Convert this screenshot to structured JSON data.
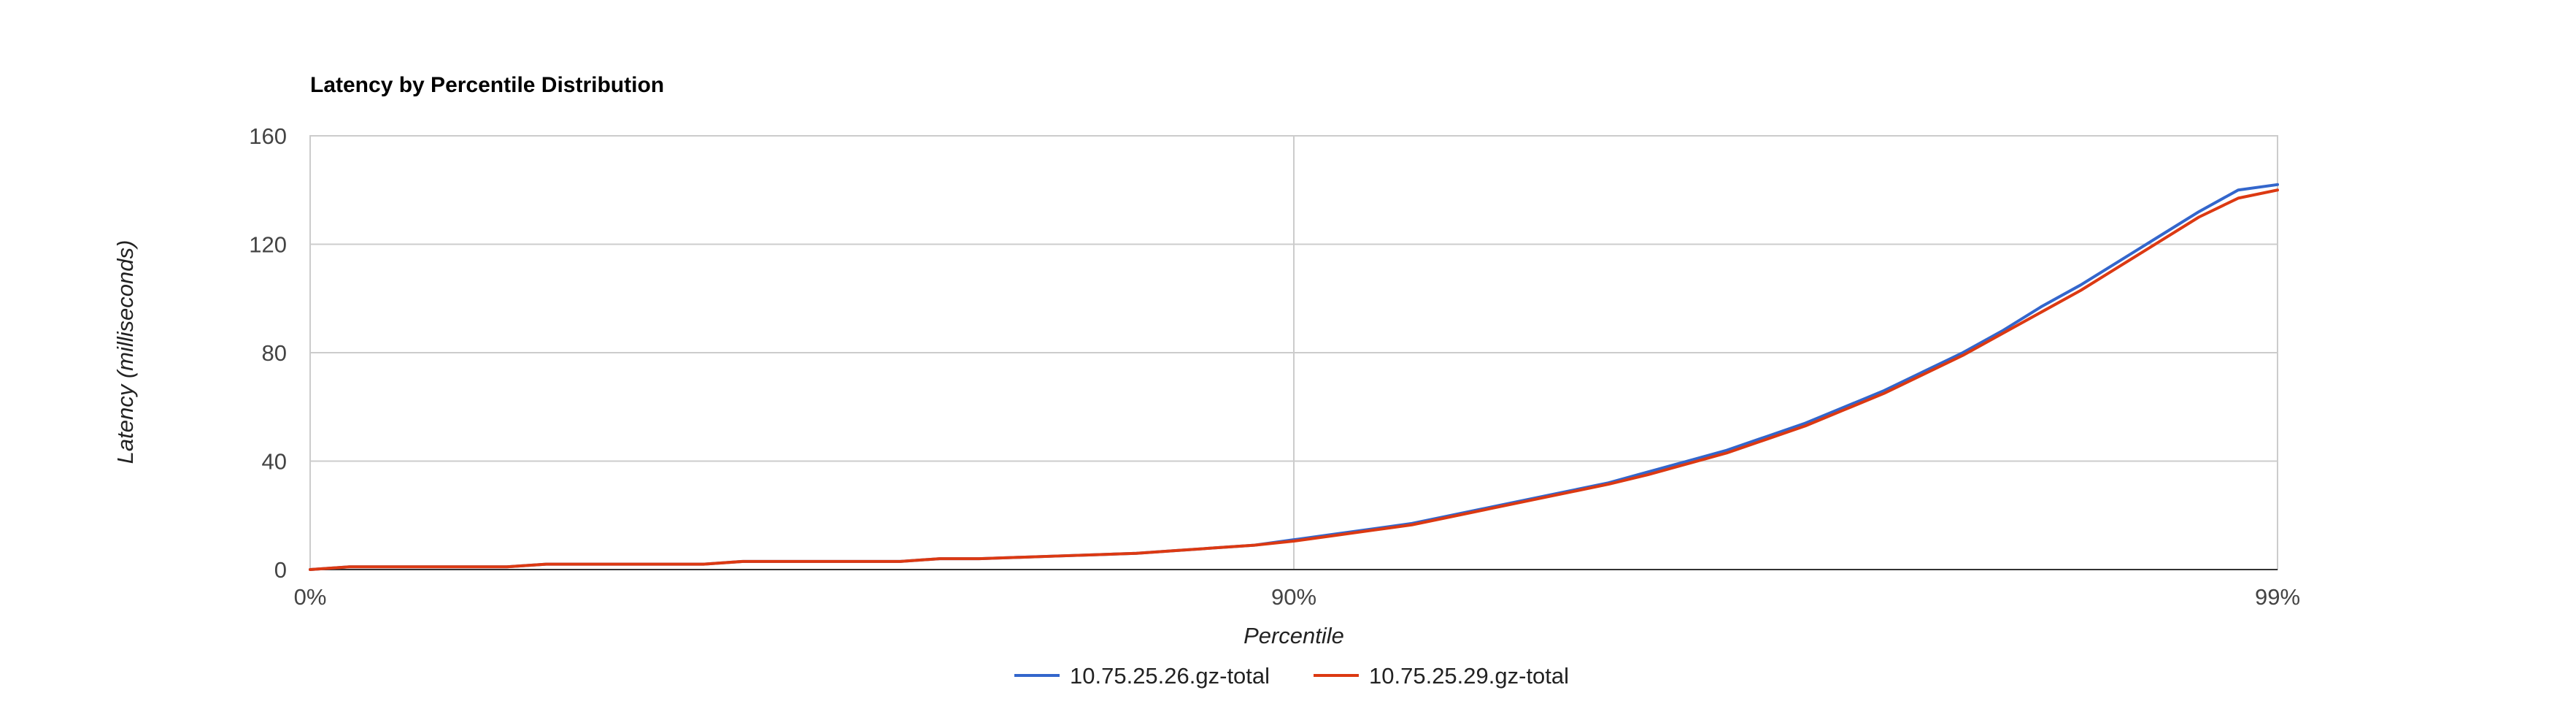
{
  "chart_data": {
    "type": "line",
    "title": "Latency by Percentile Distribution",
    "xlabel": "Percentile",
    "ylabel": "Latency (milliseconds)",
    "x_tick_labels": [
      "0%",
      "90%",
      "99%"
    ],
    "y_tick_labels": [
      "0",
      "40",
      "80",
      "120",
      "160"
    ],
    "ylim": [
      0,
      160
    ],
    "y_ticks": [
      0,
      40,
      80,
      120,
      160
    ],
    "x_note": "x values are chart percentile positions; the axis is non-linear (0%, 90%, 99% ticks at 0, 0.5, 1.0 of the width)",
    "x_positions": [
      0,
      0.02,
      0.04,
      0.06,
      0.08,
      0.1,
      0.12,
      0.14,
      0.16,
      0.18,
      0.2,
      0.22,
      0.24,
      0.26,
      0.28,
      0.3,
      0.32,
      0.34,
      0.36,
      0.38,
      0.4,
      0.42,
      0.44,
      0.46,
      0.48,
      0.5,
      0.52,
      0.54,
      0.56,
      0.58,
      0.6,
      0.62,
      0.64,
      0.66,
      0.68,
      0.7,
      0.72,
      0.74,
      0.76,
      0.78,
      0.8,
      0.82,
      0.84,
      0.86,
      0.88,
      0.9,
      0.92,
      0.94,
      0.96,
      0.98,
      1.0
    ],
    "series": [
      {
        "name": "10.75.25.26.gz-total",
        "color": "#3366cc",
        "values": [
          0,
          1,
          1,
          1,
          1,
          1,
          2,
          2,
          2,
          2,
          2,
          3,
          3,
          3,
          3,
          3,
          4,
          4,
          4.5,
          5,
          5.5,
          6,
          7,
          8,
          9,
          11,
          13,
          15,
          17,
          20,
          23,
          26,
          29,
          32,
          36,
          40,
          44,
          49,
          54,
          60,
          66,
          73,
          80,
          88,
          97,
          105,
          114,
          123,
          132,
          140,
          142
        ]
      },
      {
        "name": "10.75.25.29.gz-total",
        "color": "#dc3912",
        "values": [
          0,
          1,
          1,
          1,
          1,
          1,
          2,
          2,
          2,
          2,
          2,
          3,
          3,
          3,
          3,
          3,
          4,
          4,
          4.5,
          5,
          5.5,
          6,
          7,
          8,
          9,
          10.5,
          12.5,
          14.5,
          16.5,
          19.5,
          22.5,
          25.5,
          28.5,
          31.5,
          35,
          39,
          43,
          48,
          53,
          59,
          65,
          72,
          79,
          87,
          95,
          103,
          112,
          121,
          130,
          137,
          140
        ]
      }
    ],
    "legend_position": "bottom",
    "grid": true,
    "colors": {
      "grid": "#cccccc",
      "baseline": "#333333",
      "title": "#000000",
      "text": "#444444"
    }
  }
}
